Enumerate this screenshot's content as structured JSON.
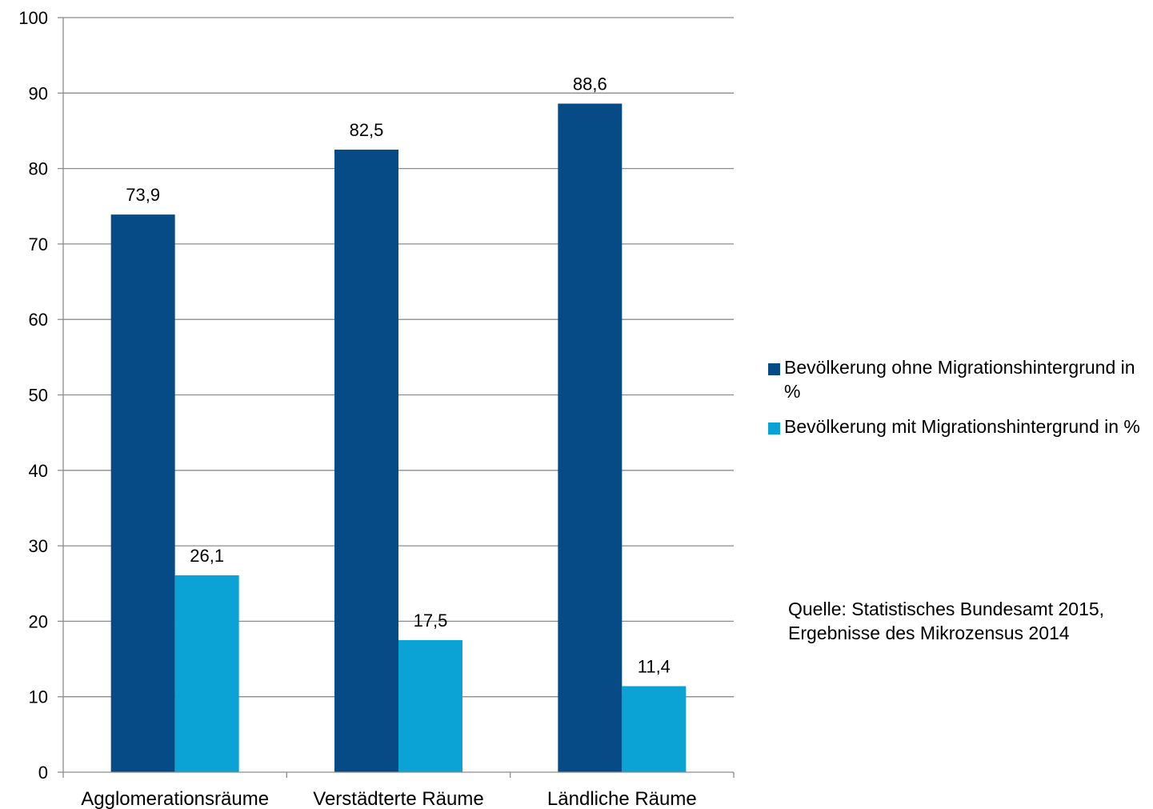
{
  "chart_data": {
    "type": "bar",
    "categories": [
      "Agglomerationsräume",
      "Verstädterte Räume",
      "Ländliche Räume"
    ],
    "series": [
      {
        "name": "Bevölkerung ohne Migrationshintergrund in %",
        "color": "#064a86",
        "values": [
          73.9,
          82.5,
          88.6
        ],
        "labels": [
          "73,9",
          "82,5",
          "88,6"
        ]
      },
      {
        "name": "Bevölkerung mit Migrationshintergrund in %",
        "color": "#0ba3d6",
        "values": [
          26.1,
          17.5,
          11.4
        ],
        "labels": [
          "26,1",
          "17,5",
          "11,4"
        ]
      }
    ],
    "yticks": [
      0,
      10,
      20,
      30,
      40,
      50,
      60,
      70,
      80,
      90,
      100
    ],
    "ylim": [
      0,
      100
    ],
    "grid": true,
    "legend_position": "right",
    "title": "",
    "xlabel": "",
    "ylabel": ""
  },
  "source_note": "Quelle: Statistisches Bundesamt 2015,\nErgebnisse des Mikrozensus 2014"
}
